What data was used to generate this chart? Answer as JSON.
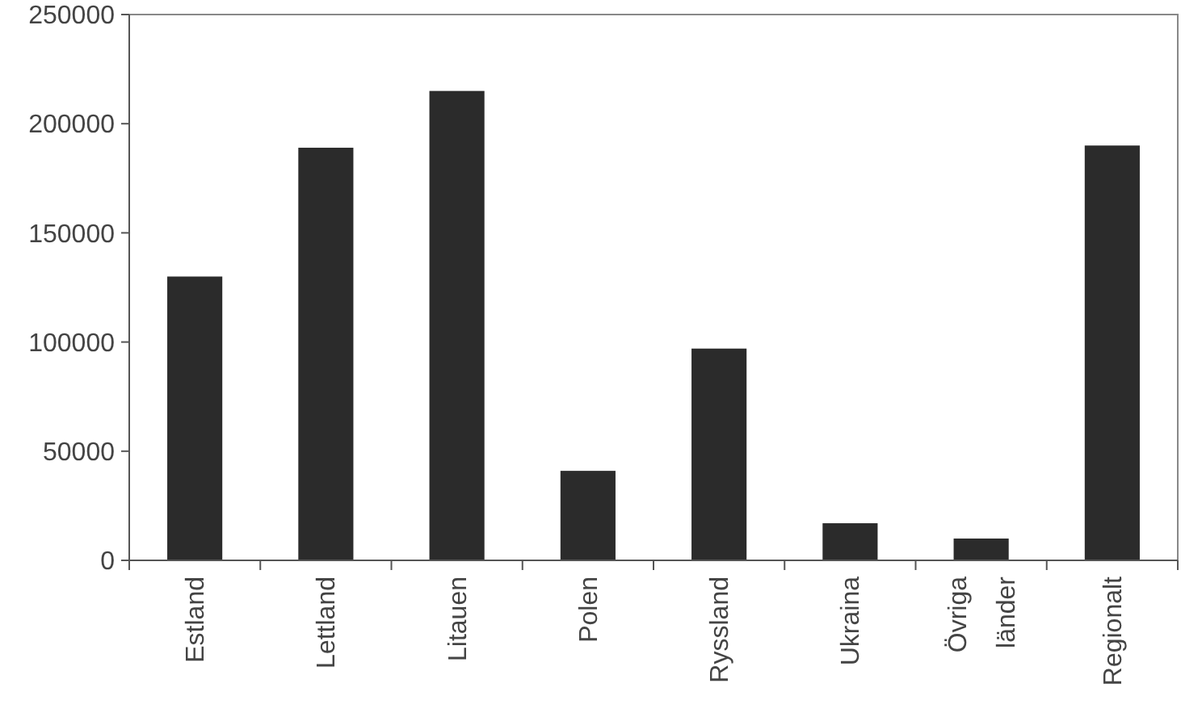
{
  "chart_data": {
    "type": "bar",
    "categories": [
      "Estland",
      "Lettland",
      "Litauen",
      "Polen",
      "Ryssland",
      "Ukraina",
      "Övriga länder",
      "Regionalt"
    ],
    "values": [
      130000,
      189000,
      215000,
      41000,
      97000,
      17000,
      10000,
      190000
    ],
    "color": "#2b2b2b",
    "ylim": [
      0,
      250000
    ],
    "yticks": [
      0,
      50000,
      100000,
      150000,
      200000,
      250000
    ],
    "grid": false
  }
}
